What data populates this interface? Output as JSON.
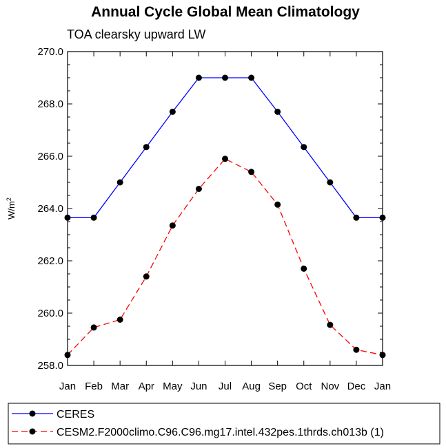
{
  "chart_data": {
    "type": "line",
    "title": "Annual Cycle Global Mean Climatology",
    "subtitle": "TOA clearsky upward LW",
    "ylabel": "W/m",
    "ylabel_sup": "2",
    "categories": [
      "Jan",
      "Feb",
      "Mar",
      "Apr",
      "May",
      "Jun",
      "Jul",
      "Aug",
      "Sep",
      "Oct",
      "Nov",
      "Dec",
      "Jan"
    ],
    "ylim": [
      258.0,
      270.0
    ],
    "yticks": [
      "258.0",
      "260.0",
      "262.0",
      "264.0",
      "266.0",
      "268.0",
      "270.0"
    ],
    "series": [
      {
        "name": "CERES",
        "color": "#0000ff",
        "dash": "solid",
        "values": [
          263.65,
          263.65,
          265.0,
          266.35,
          267.7,
          269.0,
          269.0,
          269.0,
          267.7,
          266.35,
          265.0,
          263.65,
          263.65
        ]
      },
      {
        "name": "CESM2.F2000climo.C96.C96.mg17.intel.432pes.1thrds.ch013b (1)",
        "color": "#ff0000",
        "dash": "dashed",
        "values": [
          258.4,
          259.45,
          259.75,
          261.4,
          263.35,
          264.75,
          265.9,
          265.4,
          264.15,
          261.7,
          259.55,
          258.6,
          258.4
        ]
      }
    ]
  }
}
